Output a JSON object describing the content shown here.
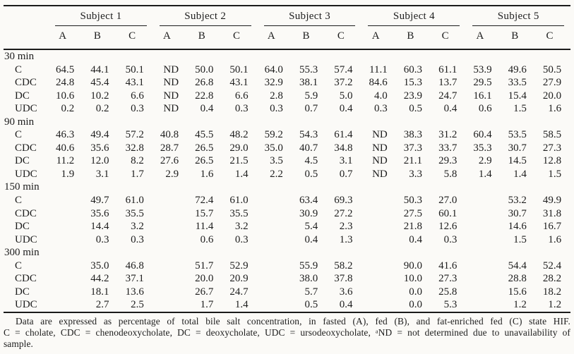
{
  "table": {
    "subjects": [
      "Subject 1",
      "Subject 2",
      "Subject 3",
      "Subject 4",
      "Subject 5"
    ],
    "subcolumns": [
      "A",
      "B",
      "C"
    ],
    "groups": [
      {
        "label": "30 min",
        "rows": [
          {
            "label": "C",
            "values": [
              "64.5",
              "44.1",
              "50.1",
              "ND",
              "50.0",
              "50.1",
              "64.0",
              "55.3",
              "57.4",
              "11.1",
              "60.3",
              "61.1",
              "53.9",
              "49.6",
              "50.5"
            ]
          },
          {
            "label": "CDC",
            "values": [
              "24.8",
              "45.4",
              "43.1",
              "ND",
              "26.8",
              "43.1",
              "32.9",
              "38.1",
              "37.2",
              "84.6",
              "15.3",
              "13.7",
              "29.5",
              "33.5",
              "27.9"
            ]
          },
          {
            "label": "DC",
            "values": [
              "10.6",
              "10.2",
              "6.6",
              "ND",
              "22.8",
              "6.6",
              "2.8",
              "5.9",
              "5.0",
              "4.0",
              "23.9",
              "24.7",
              "16.1",
              "15.4",
              "20.0"
            ]
          },
          {
            "label": "UDC",
            "values": [
              "0.2",
              "0.2",
              "0.3",
              "ND",
              "0.4",
              "0.3",
              "0.3",
              "0.7",
              "0.4",
              "0.3",
              "0.5",
              "0.4",
              "0.6",
              "1.5",
              "1.6"
            ]
          }
        ]
      },
      {
        "label": "90 min",
        "rows": [
          {
            "label": "C",
            "values": [
              "46.3",
              "49.4",
              "57.2",
              "40.8",
              "45.5",
              "48.2",
              "59.2",
              "54.3",
              "61.4",
              "ND",
              "38.3",
              "31.2",
              "60.4",
              "53.5",
              "58.5"
            ]
          },
          {
            "label": "CDC",
            "values": [
              "40.6",
              "35.6",
              "32.8",
              "28.7",
              "26.5",
              "29.0",
              "35.0",
              "40.7",
              "34.8",
              "ND",
              "37.3",
              "33.7",
              "35.3",
              "30.7",
              "27.3"
            ]
          },
          {
            "label": "DC",
            "values": [
              "11.2",
              "12.0",
              "8.2",
              "27.6",
              "26.5",
              "21.5",
              "3.5",
              "4.5",
              "3.1",
              "ND",
              "21.1",
              "29.3",
              "2.9",
              "14.5",
              "12.8"
            ]
          },
          {
            "label": "UDC",
            "values": [
              "1.9",
              "3.1",
              "1.7",
              "2.9",
              "1.6",
              "1.4",
              "2.2",
              "0.5",
              "0.7",
              "ND",
              "3.3",
              "5.8",
              "1.4",
              "1.4",
              "1.5"
            ]
          }
        ]
      },
      {
        "label": "150 min",
        "rows": [
          {
            "label": "C",
            "values": [
              "",
              "49.7",
              "61.0",
              "",
              "72.4",
              "61.0",
              "",
              "63.4",
              "69.3",
              "",
              "50.3",
              "27.0",
              "",
              "53.2",
              "49.9"
            ]
          },
          {
            "label": "CDC",
            "values": [
              "",
              "35.6",
              "35.5",
              "",
              "15.7",
              "35.5",
              "",
              "30.9",
              "27.2",
              "",
              "27.5",
              "60.1",
              "",
              "30.7",
              "31.8"
            ]
          },
          {
            "label": "DC",
            "values": [
              "",
              "14.4",
              "3.2",
              "",
              "11.4",
              "3.2",
              "",
              "5.4",
              "2.3",
              "",
              "21.8",
              "12.6",
              "",
              "14.6",
              "16.7"
            ]
          },
          {
            "label": "UDC",
            "values": [
              "",
              "0.3",
              "0.3",
              "",
              "0.6",
              "0.3",
              "",
              "0.4",
              "1.3",
              "",
              "0.4",
              "0.3",
              "",
              "1.5",
              "1.6"
            ]
          }
        ]
      },
      {
        "label": "300 min",
        "rows": [
          {
            "label": "C",
            "values": [
              "",
              "35.0",
              "46.8",
              "",
              "51.7",
              "52.9",
              "",
              "55.9",
              "58.2",
              "",
              "90.0",
              "41.6",
              "",
              "54.4",
              "52.4"
            ]
          },
          {
            "label": "CDC",
            "values": [
              "",
              "44.2",
              "37.1",
              "",
              "20.0",
              "20.9",
              "",
              "38.0",
              "37.8",
              "",
              "10.0",
              "27.3",
              "",
              "28.8",
              "28.2"
            ]
          },
          {
            "label": "DC",
            "values": [
              "",
              "18.1",
              "13.6",
              "",
              "26.7",
              "24.7",
              "",
              "5.7",
              "3.6",
              "",
              "0.0",
              "25.8",
              "",
              "15.6",
              "18.2"
            ]
          },
          {
            "label": "UDC",
            "values": [
              "",
              "2.7",
              "2.5",
              "",
              "1.7",
              "1.4",
              "",
              "0.5",
              "0.4",
              "",
              "0.0",
              "5.3",
              "",
              "1.2",
              "1.2"
            ]
          }
        ]
      }
    ]
  },
  "footnote": {
    "lines": [
      "Data are expressed as percentage of total bile salt concentration, in fasted (A), fed (B), and fat-enriched fed (C) state HIF.",
      "C = cholate, CDC = chenodeoxycholate, DC = deoxycholate, UDC = ursodeoxycholate, ᵃND = not determined due to unavailability of",
      "sample."
    ]
  },
  "colors": {
    "background": "#fbfaf7",
    "text": "#1d1d1d",
    "rule": "#1b1b1b"
  }
}
